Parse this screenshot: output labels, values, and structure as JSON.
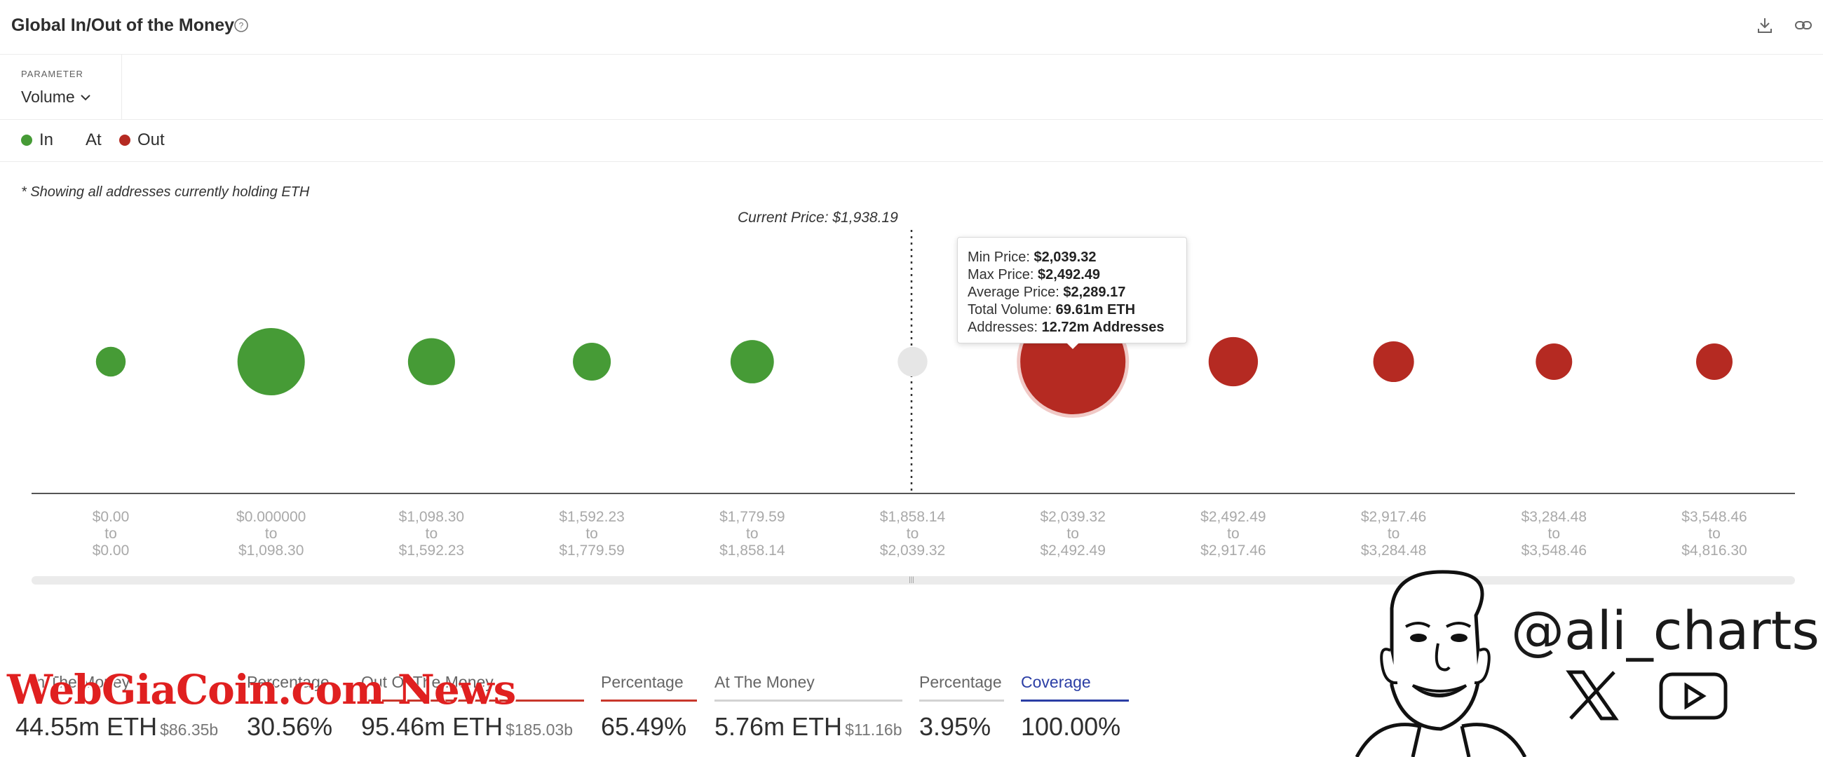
{
  "header": {
    "title": "Global In/Out of the Money"
  },
  "parameter": {
    "label": "PARAMETER",
    "value": "Volume"
  },
  "legend": [
    {
      "label": "In",
      "color": "#469b36"
    },
    {
      "label": "At",
      "color": "#e6e6e6"
    },
    {
      "label": "Out",
      "color": "#b52a22"
    }
  ],
  "note": "* Showing all addresses currently holding ETH",
  "current_price": "Current Price: $1,938.19",
  "chart_data": {
    "type": "bubble",
    "title": "Global In/Out of the Money",
    "x": [
      "$0.00 to $0.00",
      "$0.000000 to $1,098.30",
      "$1,098.30 to $1,592.23",
      "$1,592.23 to $1,779.59",
      "$1,779.59 to $1,858.14",
      "$1,858.14 to $2,039.32",
      "$2,039.32 to $2,492.49",
      "$2,492.49 to $2,917.46",
      "$2,917.46 to $3,284.48",
      "$3,284.48 to $3,548.46",
      "$3,548.46 to $4,816.30"
    ],
    "ticks": [
      [
        "$0.00",
        "to",
        "$0.00"
      ],
      [
        "$0.000000",
        "to",
        "$1,098.30"
      ],
      [
        "$1,098.30",
        "to",
        "$1,592.23"
      ],
      [
        "$1,592.23",
        "to",
        "$1,779.59"
      ],
      [
        "$1,779.59",
        "to",
        "$1,858.14"
      ],
      [
        "$1,858.14",
        "to",
        "$2,039.32"
      ],
      [
        "$2,039.32",
        "to",
        "$2,492.49"
      ],
      [
        "$2,492.49",
        "to",
        "$2,917.46"
      ],
      [
        "$2,917.46",
        "to",
        "$3,284.48"
      ],
      [
        "$3,284.48",
        "to",
        "$3,548.46"
      ],
      [
        "$3,548.46",
        "to",
        "$4,816.30"
      ]
    ],
    "status": [
      "In",
      "In",
      "In",
      "In",
      "In",
      "At",
      "Out",
      "Out",
      "Out",
      "Out",
      "Out"
    ],
    "relative_size": [
      0.08,
      0.41,
      0.2,
      0.13,
      0.17,
      0.08,
      1.0,
      0.22,
      0.15,
      0.12,
      0.12
    ],
    "colors": {
      "In": "#469b36",
      "At": "#e6e6e6",
      "Out": "#b52a22"
    },
    "current_price": 1938.19
  },
  "tooltip": {
    "min_label": "Min Price:",
    "min_value": "$2,039.32",
    "max_label": "Max Price:",
    "max_value": "$2,492.49",
    "avg_label": "Average Price:",
    "avg_value": "$2,289.17",
    "vol_label": "Total Volume:",
    "vol_value": "69.61m ETH",
    "addr_label": "Addresses:",
    "addr_value": "12.72m Addresses"
  },
  "stats": {
    "in_label": "In The Money",
    "in_value": "44.55m ETH",
    "in_sub": "$86.35b",
    "in_pct_label": "Percentage",
    "in_pct": "30.56%",
    "out_label": "Out Of The Money",
    "out_value": "95.46m ETH",
    "out_sub": "$185.03b",
    "out_pct_label": "Percentage",
    "out_pct": "65.49%",
    "at_label": "At The Money",
    "at_value": "5.76m ETH",
    "at_sub": "$11.16b",
    "at_pct_label": "Percentage",
    "at_pct": "3.95%",
    "cov_label": "Coverage",
    "cov_value": "100.00%"
  },
  "watermark": "WebGiaCoin.com News",
  "social": {
    "handle": "@ali_charts"
  }
}
